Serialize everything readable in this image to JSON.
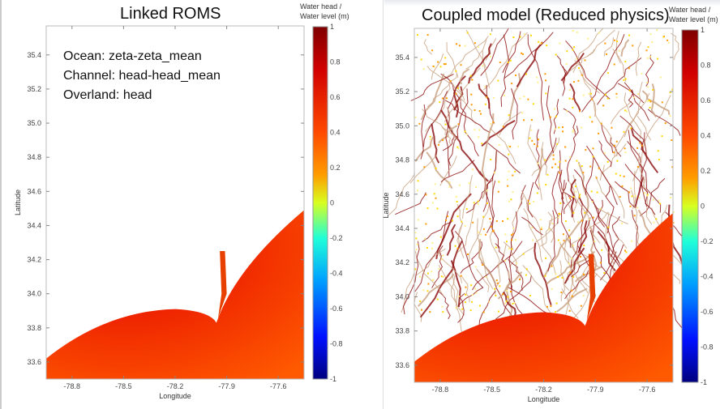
{
  "chart_data": [
    {
      "type": "heatmap",
      "title": "Linked ROMS",
      "xlabel": "Longitude",
      "ylabel": "Latitude",
      "xticks": [
        -78.8,
        -78.5,
        -78.2,
        -77.9,
        -77.6
      ],
      "yticks": [
        35.4,
        35.2,
        35.0,
        34.8,
        34.6,
        34.4,
        34.2,
        34.0,
        33.8,
        33.6
      ],
      "colorbar": {
        "label": "Water head / Water level (m)",
        "range": [
          -1,
          1
        ],
        "ticks": [
          1,
          0.8,
          0.6,
          0.4,
          0.2,
          0,
          -0.2,
          -0.4,
          -0.6,
          -0.8,
          -1
        ],
        "colormap": "jet"
      },
      "annotation": [
        "Ocean: zeta-zeta_mean",
        "Channel: head-head_mean",
        "Overland: head"
      ]
    },
    {
      "type": "heatmap",
      "title": "Coupled model (Reduced physics)",
      "xlabel": "Longitude",
      "ylabel": "Latitude",
      "xticks": [
        -78.8,
        -78.5,
        -78.2,
        -77.9,
        -77.6
      ],
      "yticks": [
        35.4,
        35.2,
        35.0,
        34.8,
        34.6,
        34.4,
        34.2,
        34.0,
        33.8,
        33.6
      ],
      "colorbar": {
        "label": "Water head / Water level (m)",
        "range": [
          -1,
          1
        ],
        "ticks": [
          1,
          0.8,
          0.6,
          0.4,
          0.2,
          0,
          -0.2,
          -0.4,
          -0.6,
          -0.8,
          -1
        ],
        "colormap": "jet"
      }
    }
  ],
  "cb_line1": "Water head /",
  "cb_line2": "Water level (m)"
}
